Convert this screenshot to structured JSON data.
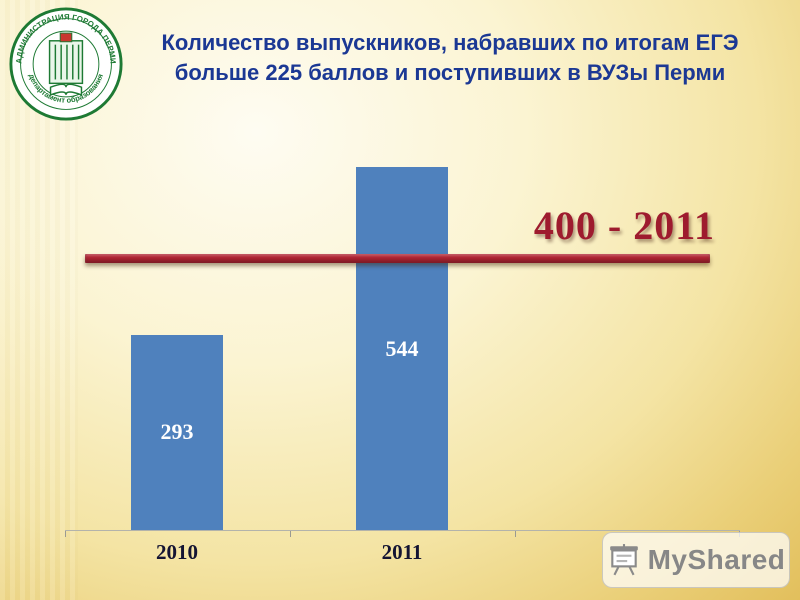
{
  "slide": {
    "title": "Количество выпускников, набравших по итогам ЕГЭ больше 225 баллов и поступивших в ВУЗы Перми"
  },
  "logo": {
    "text_top": "АДМИНИСТРАЦИЯ ГОРОДА ПЕРМИ",
    "text_bottom": "департамент образования"
  },
  "chart_data": {
    "type": "bar",
    "categories": [
      "2010",
      "2011"
    ],
    "values": [
      293,
      544
    ],
    "bar_labels": [
      "293",
      "544"
    ],
    "title": "Количество выпускников, набравших по итогам ЕГЭ больше 225 баллов и поступивших в ВУЗы Перми",
    "xlabel": "",
    "ylabel": "",
    "ylim": [
      0,
      570
    ],
    "grid": false,
    "legend": "none",
    "bar_color": "#4f81bd",
    "reference_line": {
      "value": 400,
      "label": "400 - 2011",
      "color": "#b02433"
    }
  },
  "watermark": {
    "label": "MyShared"
  },
  "colors": {
    "title_text": "#1b3894",
    "background_gold": "#e2bf5c",
    "ref_label_red": "#9e1b2e",
    "emblem_green": "#1e7a34"
  }
}
